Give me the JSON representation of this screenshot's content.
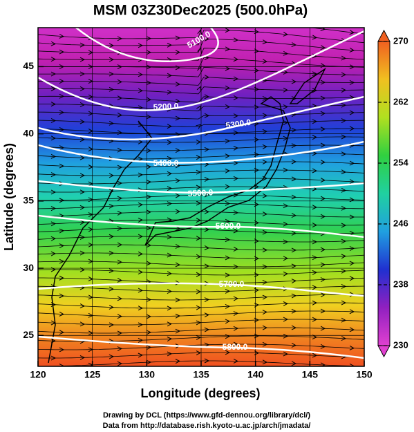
{
  "title": "MSM 03Z30Dec2025 (500.0hPa)",
  "x_axis": {
    "label": "Longitude (degrees)",
    "lim": [
      120,
      150
    ],
    "ticks": [
      120,
      125,
      130,
      135,
      140,
      145,
      150
    ]
  },
  "y_axis": {
    "label": "Latitude  (degrees)",
    "lim": [
      22.7,
      47.9
    ],
    "ticks": [
      25,
      30,
      35,
      40,
      45
    ]
  },
  "colorbar": {
    "lim": [
      230,
      270
    ],
    "ticks": [
      230,
      238,
      246,
      254,
      262,
      270
    ],
    "colors": [
      "#e040d0",
      "#9020c0",
      "#2030d0",
      "#20a0e0",
      "#20d0a0",
      "#30d040",
      "#b0e020",
      "#f0c020",
      "#f06020"
    ]
  },
  "contours": [
    {
      "value": 5100,
      "label": "5100.0"
    },
    {
      "value": 5200,
      "label": "5200.0"
    },
    {
      "value": 5300,
      "label": "5300.0"
    },
    {
      "value": 5400,
      "label": "5400.0"
    },
    {
      "value": 5500,
      "label": "5500.0"
    },
    {
      "value": 5600,
      "label": "5600.0"
    },
    {
      "value": 5700,
      "label": "5700.0"
    },
    {
      "value": 5800,
      "label": "5800.0"
    }
  ],
  "footer": [
    "Drawing by DCL (https://www.gfd-dennou.org/library/dcl/)",
    "Data from http://database.rish.kyoto-u.ac.jp/arch/jmadata/"
  ]
}
